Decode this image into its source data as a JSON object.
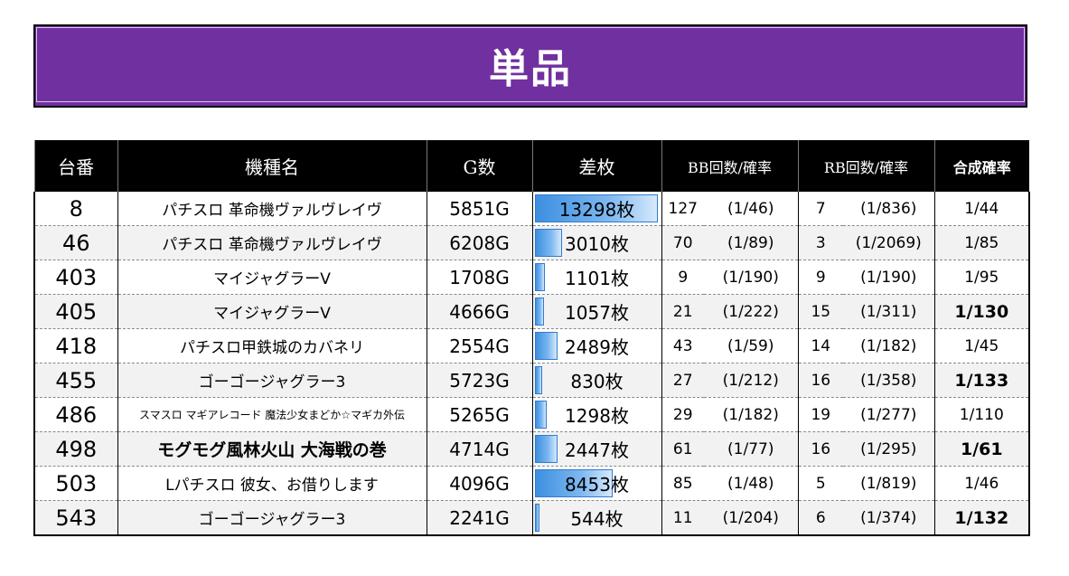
{
  "title": "単品",
  "headers": {
    "no": "台番",
    "name": "機種名",
    "games": "G数",
    "diff": "差枚",
    "bb": "BB回数/確率",
    "rb": "RB回数/確率",
    "total": "合成確率"
  },
  "diff_max": 13298,
  "rows": [
    {
      "no": "8",
      "name": "パチスロ 革命機ヴァルヴレイヴ",
      "games": "5851G",
      "diff": "13298枚",
      "diff_value": 13298,
      "bb": "127",
      "bb_prob": "(1/46)",
      "rb": "7",
      "rb_prob": "(1/836)",
      "total": "1/44"
    },
    {
      "no": "46",
      "name": "パチスロ 革命機ヴァルヴレイヴ",
      "games": "6208G",
      "diff": "3010枚",
      "diff_value": 3010,
      "bb": "70",
      "bb_prob": "(1/89)",
      "rb": "3",
      "rb_prob": "(1/2069)",
      "total": "1/85"
    },
    {
      "no": "403",
      "name": "マイジャグラーV",
      "games": "1708G",
      "diff": "1101枚",
      "diff_value": 1101,
      "bb": "9",
      "bb_prob": "(1/190)",
      "rb": "9",
      "rb_prob": "(1/190)",
      "total": "1/95"
    },
    {
      "no": "405",
      "name": "マイジャグラーV",
      "games": "4666G",
      "diff": "1057枚",
      "diff_value": 1057,
      "bb": "21",
      "bb_prob": "(1/222)",
      "rb": "15",
      "rb_prob": "(1/311)",
      "total": "1/130"
    },
    {
      "no": "418",
      "name": "パチスロ甲鉄城のカバネリ",
      "games": "2554G",
      "diff": "2489枚",
      "diff_value": 2489,
      "bb": "43",
      "bb_prob": "(1/59)",
      "rb": "14",
      "rb_prob": "(1/182)",
      "total": "1/45"
    },
    {
      "no": "455",
      "name": "ゴーゴージャグラー3",
      "games": "5723G",
      "diff": "830枚",
      "diff_value": 830,
      "bb": "27",
      "bb_prob": "(1/212)",
      "rb": "16",
      "rb_prob": "(1/358)",
      "total": "1/133"
    },
    {
      "no": "486",
      "name": "スマスロ マギアレコード 魔法少女まどか☆マギカ外伝",
      "games": "5265G",
      "diff": "1298枚",
      "diff_value": 1298,
      "bb": "29",
      "bb_prob": "(1/182)",
      "rb": "19",
      "rb_prob": "(1/277)",
      "total": "1/110"
    },
    {
      "no": "498",
      "name": "モグモグ風林火山 大海戦の巻",
      "games": "4714G",
      "diff": "2447枚",
      "diff_value": 2447,
      "bb": "61",
      "bb_prob": "(1/77)",
      "rb": "16",
      "rb_prob": "(1/295)",
      "total": "1/61"
    },
    {
      "no": "503",
      "name": "Lパチスロ 彼女、お借りします",
      "games": "4096G",
      "diff": "8453枚",
      "diff_value": 8453,
      "bb": "85",
      "bb_prob": "(1/48)",
      "rb": "5",
      "rb_prob": "(1/819)",
      "total": "1/46"
    },
    {
      "no": "543",
      "name": "ゴーゴージャグラー3",
      "games": "2241G",
      "diff": "544枚",
      "diff_value": 544,
      "bb": "11",
      "bb_prob": "(1/204)",
      "rb": "6",
      "rb_prob": "(1/374)",
      "total": "1/132"
    }
  ]
}
